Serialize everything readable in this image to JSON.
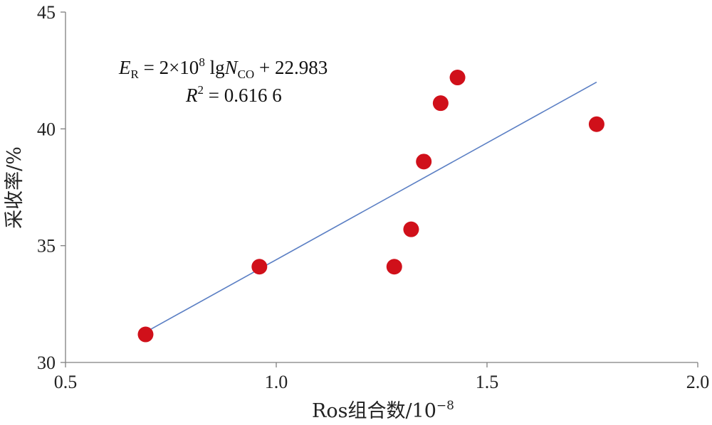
{
  "chart_data": {
    "type": "scatter",
    "xlabel": "Ros组合数/10",
    "xlabel_exponent": "−8",
    "ylabel": "采收率/%",
    "xlim": [
      0.5,
      2.0
    ],
    "ylim": [
      30,
      45
    ],
    "x_ticks": [
      "0.5",
      "1.0",
      "1.5",
      "2.0"
    ],
    "y_ticks": [
      "30",
      "35",
      "40",
      "45"
    ],
    "grid": false,
    "points": [
      {
        "x": 0.69,
        "y": 31.2
      },
      {
        "x": 0.96,
        "y": 34.1
      },
      {
        "x": 1.28,
        "y": 34.1
      },
      {
        "x": 1.32,
        "y": 35.7
      },
      {
        "x": 1.35,
        "y": 38.6
      },
      {
        "x": 1.39,
        "y": 41.1
      },
      {
        "x": 1.43,
        "y": 42.2
      },
      {
        "x": 1.76,
        "y": 40.2
      }
    ],
    "trendline": {
      "x_start": 0.69,
      "y_start": 31.3,
      "x_end": 1.76,
      "y_end": 42.0
    },
    "equation": {
      "lhs_var": "E",
      "lhs_sub": "R",
      "eq_a": " = 2×10",
      "eq_a_sup": "8",
      "eq_b": " lg",
      "eq_var": "N",
      "eq_sub": "CO",
      "eq_c": " + 22.983",
      "r2_var": "R",
      "r2_sup": "2",
      "r2_value": " = 0.616 6"
    },
    "colors": {
      "points": "#d0101a",
      "trendline": "#5b7fc4",
      "axes": "#7f7f7f"
    }
  }
}
